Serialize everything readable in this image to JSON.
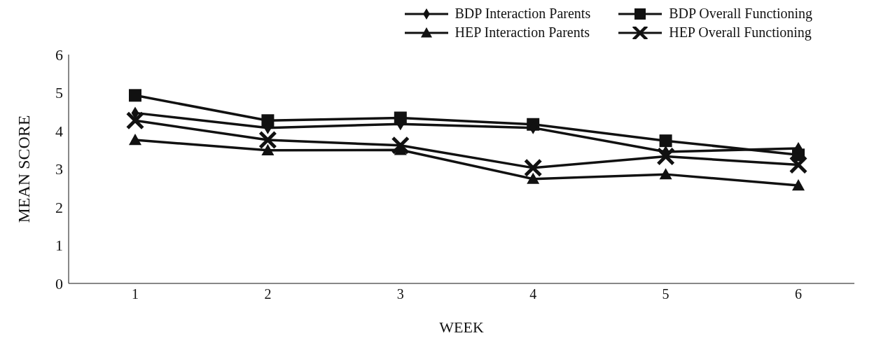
{
  "chart_data": {
    "type": "line",
    "xlabel": "WEEK",
    "ylabel": "MEAN SCORE",
    "categories": [
      "1",
      "2",
      "3",
      "4",
      "5",
      "6"
    ],
    "series": [
      {
        "name": "BDP Interaction Parents",
        "color": "#111111",
        "marker": "diamond",
        "values": [
          4.47,
          4.08,
          4.18,
          4.08,
          3.45,
          3.54
        ]
      },
      {
        "name": "BDP Overall Functioning",
        "color": "#111111",
        "marker": "square",
        "values": [
          4.93,
          4.27,
          4.34,
          4.17,
          3.74,
          3.37
        ]
      },
      {
        "name": "HEP Interaction Parents",
        "color": "#111111",
        "marker": "triangle",
        "values": [
          3.76,
          3.49,
          3.5,
          2.74,
          2.86,
          2.57
        ]
      },
      {
        "name": "HEP Overall Functioning",
        "color": "#111111",
        "marker": "cross",
        "values": [
          4.27,
          3.76,
          3.62,
          3.03,
          3.33,
          3.11
        ]
      }
    ],
    "ylim": [
      0,
      6
    ],
    "yticks": [
      0,
      1,
      2,
      3,
      4,
      5,
      6
    ],
    "grid": false,
    "legend": "top right",
    "line_style": "solid"
  }
}
